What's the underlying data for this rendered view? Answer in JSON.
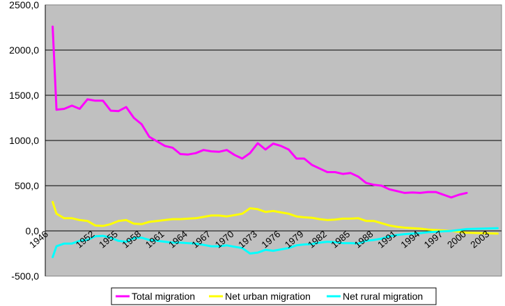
{
  "chart_data": {
    "type": "line",
    "title": "",
    "xlabel": "",
    "ylabel": "",
    "ylim": [
      -500,
      2500
    ],
    "yticks": [
      "-500,0",
      "0,0",
      "500,0",
      "1000,0",
      "1500,0",
      "2000,0",
      "2500,0"
    ],
    "ytick_values": [
      -500,
      0,
      500,
      1000,
      1500,
      2000,
      2500
    ],
    "xticks": [
      "1946",
      "1952",
      "1955",
      "1958",
      "1961",
      "1964",
      "1967",
      "1970",
      "1973",
      "1976",
      "1979",
      "1982",
      "1985",
      "1988",
      "1991",
      "1994",
      "1997",
      "2000",
      "2003"
    ],
    "xtick_values": [
      1946,
      1952,
      1955,
      1958,
      1961,
      1964,
      1967,
      1970,
      1973,
      1976,
      1979,
      1982,
      1985,
      1988,
      1991,
      1994,
      1997,
      2000,
      2003
    ],
    "xlim": [
      1946,
      2004.5
    ],
    "grid": true,
    "legend_position": "bottom",
    "background_color": "#c0c0c0",
    "x": [
      1946,
      1947,
      1948,
      1949,
      1950,
      1951,
      1952,
      1953,
      1954,
      1955,
      1956,
      1957,
      1958,
      1959,
      1960,
      1961,
      1962,
      1963,
      1964,
      1965,
      1966,
      1967,
      1968,
      1969,
      1970,
      1971,
      1972,
      1973,
      1974,
      1975,
      1976,
      1977,
      1978,
      1979,
      1980,
      1981,
      1982,
      1983,
      1984,
      1985,
      1986,
      1987,
      1988,
      1989,
      1990,
      1991,
      1992,
      1993,
      1994,
      1995,
      1996,
      1997,
      1998,
      1999,
      2000,
      2001,
      2002,
      2003,
      2004
    ],
    "series": [
      {
        "name": "Total migration",
        "color": "#ff00ff",
        "values": [
          2260,
          1340,
          1350,
          1385,
          1350,
          1455,
          1440,
          1440,
          1330,
          1325,
          1370,
          1250,
          1180,
          1040,
          990,
          940,
          920,
          850,
          845,
          860,
          895,
          880,
          875,
          895,
          840,
          800,
          860,
          970,
          900,
          965,
          940,
          900,
          800,
          800,
          730,
          690,
          650,
          650,
          630,
          640,
          600,
          530,
          510,
          500,
          460,
          440,
          420,
          425,
          420,
          430,
          430,
          400,
          370,
          400,
          420
        ],
        "x": [
          1946.5,
          1947,
          1948,
          1949,
          1950,
          1951,
          1952,
          1953,
          1954,
          1955,
          1956,
          1957,
          1958,
          1959,
          1960,
          1961,
          1962,
          1963,
          1964,
          1965,
          1966,
          1967,
          1968,
          1969,
          1970,
          1971,
          1972,
          1973,
          1974,
          1975,
          1976,
          1977,
          1978,
          1979,
          1980,
          1981,
          1982,
          1983,
          1984,
          1985,
          1986,
          1987,
          1988,
          1989,
          1990,
          1991,
          1992,
          1993,
          1994,
          1995,
          1996,
          1997,
          1998,
          1999,
          2000
        ]
      },
      {
        "name": "Net urban migration",
        "color": "#ffff00",
        "values": [
          320,
          190,
          140,
          140,
          120,
          110,
          60,
          55,
          75,
          110,
          120,
          80,
          75,
          100,
          110,
          120,
          130,
          130,
          135,
          140,
          155,
          170,
          170,
          160,
          175,
          190,
          250,
          240,
          210,
          220,
          205,
          190,
          160,
          150,
          145,
          130,
          120,
          125,
          135,
          135,
          140,
          110,
          110,
          85,
          60,
          45,
          35,
          30,
          25,
          15,
          10,
          5,
          0,
          -10,
          -20,
          -30
        ],
        "x": [
          1946.5,
          1947,
          1948,
          1949,
          1950,
          1951,
          1952,
          1953,
          1954,
          1955,
          1956,
          1957,
          1958,
          1959,
          1960,
          1961,
          1962,
          1963,
          1964,
          1965,
          1966,
          1967,
          1968,
          1969,
          1970,
          1971,
          1972,
          1973,
          1974,
          1975,
          1976,
          1977,
          1978,
          1979,
          1980,
          1981,
          1982,
          1983,
          1984,
          1985,
          1986,
          1987,
          1988,
          1989,
          1990,
          1991,
          1992,
          1993,
          1994,
          1995,
          1996,
          1997,
          1998,
          1999,
          2000,
          2004
        ]
      },
      {
        "name": "Net rural migration",
        "color": "#00ffff",
        "values": [
          -290,
          -170,
          -140,
          -140,
          -110,
          -100,
          -60,
          -55,
          -75,
          -110,
          -120,
          -80,
          -75,
          -100,
          -110,
          -120,
          -130,
          -130,
          -135,
          -140,
          -155,
          -170,
          -170,
          -160,
          -175,
          -190,
          -250,
          -240,
          -210,
          -220,
          -205,
          -190,
          -160,
          -150,
          -145,
          -130,
          -120,
          -125,
          -135,
          -135,
          -140,
          -110,
          -100,
          -85,
          -60,
          -45,
          -35,
          -30,
          -25,
          -15,
          -10,
          -5,
          0,
          10,
          20,
          30
        ],
        "x": [
          1946.5,
          1947,
          1948,
          1949,
          1950,
          1951,
          1952,
          1953,
          1954,
          1955,
          1956,
          1957,
          1958,
          1959,
          1960,
          1961,
          1962,
          1963,
          1964,
          1965,
          1966,
          1967,
          1968,
          1969,
          1970,
          1971,
          1972,
          1973,
          1974,
          1975,
          1976,
          1977,
          1978,
          1979,
          1980,
          1981,
          1982,
          1983,
          1984,
          1985,
          1986,
          1987,
          1988,
          1989,
          1990,
          1991,
          1992,
          1993,
          1994,
          1995,
          1996,
          1997,
          1998,
          1999,
          2000,
          2004
        ]
      }
    ]
  }
}
